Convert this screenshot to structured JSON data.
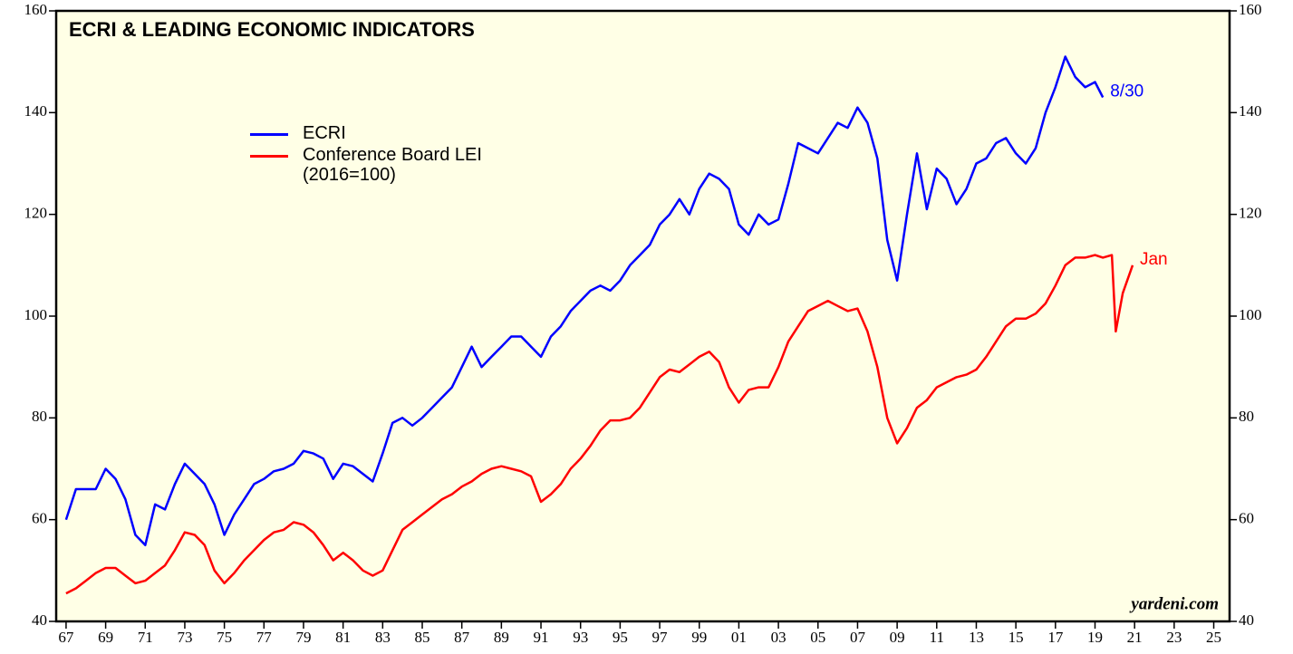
{
  "chart_data": {
    "type": "line",
    "title": "ECRI & LEADING ECONOMIC INDICATORS",
    "source": "yardeni.com",
    "x": [
      1967.0,
      1967.5,
      1968.0,
      1968.5,
      1969.0,
      1969.5,
      1970.0,
      1970.5,
      1971.0,
      1971.5,
      1972.0,
      1972.5,
      1973.0,
      1973.5,
      1974.0,
      1974.5,
      1975.0,
      1975.5,
      1976.0,
      1976.5,
      1977.0,
      1977.5,
      1978.0,
      1978.5,
      1979.0,
      1979.5,
      1980.0,
      1980.5,
      1981.0,
      1981.5,
      1982.0,
      1982.5,
      1983.0,
      1983.5,
      1984.0,
      1984.5,
      1985.0,
      1985.5,
      1986.0,
      1986.5,
      1987.0,
      1987.5,
      1988.0,
      1988.5,
      1989.0,
      1989.5,
      1990.0,
      1990.5,
      1991.0,
      1991.5,
      1992.0,
      1992.5,
      1993.0,
      1993.5,
      1994.0,
      1994.5,
      1995.0,
      1995.5,
      1996.0,
      1996.5,
      1997.0,
      1997.5,
      1998.0,
      1998.5,
      1999.0,
      1999.5,
      2000.0,
      2000.5,
      2001.0,
      2001.5,
      2002.0,
      2002.5,
      2003.0,
      2003.5,
      2004.0,
      2004.5,
      2005.0,
      2005.5,
      2006.0,
      2006.5,
      2007.0,
      2007.5,
      2008.0,
      2008.5,
      2009.0,
      2009.5,
      2010.0,
      2010.5,
      2011.0,
      2011.5,
      2012.0,
      2012.5,
      2013.0,
      2013.5,
      2014.0,
      2014.5,
      2015.0,
      2015.5,
      2016.0,
      2016.5,
      2017.0,
      2017.5,
      2018.0,
      2018.5,
      2019.0,
      2019.4,
      2019.85,
      2020.05,
      2020.4,
      2020.9
    ],
    "series": [
      {
        "name": "ECRI",
        "color": "#0000ff",
        "end_label": "8/30",
        "values": [
          60,
          66,
          66,
          66,
          70,
          68,
          64,
          57,
          55,
          63,
          62,
          67,
          71,
          69,
          67,
          63,
          57,
          61,
          64,
          67,
          68,
          69.5,
          70,
          71,
          73.5,
          73,
          72,
          68,
          71,
          70.5,
          69,
          67.5,
          73,
          79,
          80,
          78.5,
          80,
          82,
          84,
          86,
          90,
          94,
          90,
          92,
          94,
          96,
          96,
          94,
          92,
          96,
          98,
          101,
          103,
          105,
          106,
          105,
          107,
          110,
          112,
          114,
          118,
          120,
          123,
          120,
          125,
          128,
          127,
          125,
          118,
          116,
          120,
          118,
          119,
          126,
          134,
          133,
          132,
          135,
          138,
          137,
          141,
          138,
          131,
          115,
          107,
          120,
          132,
          121,
          129,
          127,
          122,
          125,
          130,
          131,
          134,
          135,
          132,
          130,
          133,
          140,
          145,
          151,
          147,
          145,
          146,
          143,
          null,
          null,
          null,
          null
        ]
      },
      {
        "name": "Conference Board LEI (2016=100)",
        "color": "#ff0000",
        "end_label": "Jan",
        "values": [
          45.5,
          46.5,
          48,
          49.5,
          50.5,
          50.5,
          49,
          47.5,
          48,
          49.5,
          51,
          54,
          57.5,
          57,
          55,
          50,
          47.5,
          49.5,
          52,
          54,
          56,
          57.5,
          58,
          59.5,
          59,
          57.5,
          55,
          52,
          53.5,
          52,
          50,
          49,
          50,
          54,
          58,
          59.5,
          61,
          62.5,
          64,
          65,
          66.5,
          67.5,
          69,
          70,
          70.5,
          70,
          69.5,
          68.5,
          63.5,
          65,
          67,
          70,
          72,
          74.5,
          77.5,
          79.5,
          79.5,
          80,
          82,
          85,
          88,
          89.5,
          89,
          90.5,
          92,
          93,
          91,
          86,
          83,
          85.5,
          86,
          86,
          90,
          95,
          98,
          101,
          102,
          103,
          102,
          101,
          101.5,
          97,
          90,
          80,
          75,
          78,
          82,
          83.5,
          86,
          87,
          88,
          88.5,
          89.5,
          92,
          95,
          98,
          99.5,
          99.5,
          100.5,
          102.5,
          106,
          110,
          111.5,
          111.5,
          112,
          111.5,
          112,
          97,
          104.5,
          110
        ]
      }
    ],
    "xlim": [
      1966.5,
      2025.8
    ],
    "xticks": [
      {
        "value": 1967,
        "label": "67"
      },
      {
        "value": 1969,
        "label": "69"
      },
      {
        "value": 1971,
        "label": "71"
      },
      {
        "value": 1973,
        "label": "73"
      },
      {
        "value": 1975,
        "label": "75"
      },
      {
        "value": 1977,
        "label": "77"
      },
      {
        "value": 1979,
        "label": "79"
      },
      {
        "value": 1981,
        "label": "81"
      },
      {
        "value": 1983,
        "label": "83"
      },
      {
        "value": 1985,
        "label": "85"
      },
      {
        "value": 1987,
        "label": "87"
      },
      {
        "value": 1989,
        "label": "89"
      },
      {
        "value": 1991,
        "label": "91"
      },
      {
        "value": 1993,
        "label": "93"
      },
      {
        "value": 1995,
        "label": "95"
      },
      {
        "value": 1997,
        "label": "97"
      },
      {
        "value": 1999,
        "label": "99"
      },
      {
        "value": 2001,
        "label": "01"
      },
      {
        "value": 2003,
        "label": "03"
      },
      {
        "value": 2005,
        "label": "05"
      },
      {
        "value": 2007,
        "label": "07"
      },
      {
        "value": 2009,
        "label": "09"
      },
      {
        "value": 2011,
        "label": "11"
      },
      {
        "value": 2013,
        "label": "13"
      },
      {
        "value": 2015,
        "label": "15"
      },
      {
        "value": 2017,
        "label": "17"
      },
      {
        "value": 2019,
        "label": "19"
      },
      {
        "value": 2021,
        "label": "21"
      },
      {
        "value": 2023,
        "label": "23"
      },
      {
        "value": 2025,
        "label": "25"
      }
    ],
    "ylim": [
      40,
      160
    ],
    "yticks": [
      40,
      60,
      80,
      100,
      120,
      140,
      160
    ],
    "background": "#ffffe6"
  }
}
